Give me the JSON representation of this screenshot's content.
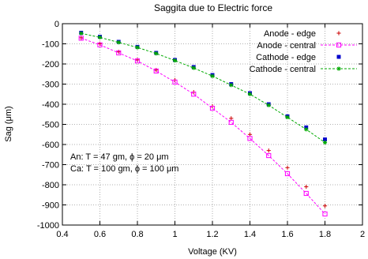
{
  "chart_data": {
    "type": "scatter",
    "title": "Saggita due to Electric force",
    "xlabel": "Voltage (KV)",
    "ylabel": "Sag (μm)",
    "xlim": [
      0.4,
      2.0
    ],
    "ylim": [
      -1000,
      0
    ],
    "x_ticks": [
      "0.4",
      "0.6",
      "0.8",
      "1",
      "1.2",
      "1.4",
      "1.6",
      "1.8",
      "2"
    ],
    "y_ticks": [
      "0",
      "-100",
      "-200",
      "-300",
      "-400",
      "-500",
      "-600",
      "-700",
      "-800",
      "-900",
      "-1000"
    ],
    "grid": true,
    "legend_position": "top-right",
    "x": [
      0.5,
      0.6,
      0.7,
      0.8,
      0.9,
      1.0,
      1.1,
      1.2,
      1.3,
      1.4,
      1.5,
      1.6,
      1.7,
      1.8
    ],
    "series": [
      {
        "name": "Anode - edge",
        "style": "points",
        "marker": "plus",
        "color": "#cc0000",
        "values": [
          -70,
          -100,
          -140,
          -180,
          -230,
          -280,
          -340,
          -410,
          -470,
          -550,
          -630,
          -715,
          -810,
          -905
        ]
      },
      {
        "name": "Anode - central",
        "style": "linespoints",
        "marker": "square",
        "color": "#ff00ff",
        "values": [
          -72,
          -105,
          -145,
          -185,
          -235,
          -290,
          -350,
          -420,
          -490,
          -570,
          -655,
          -745,
          -843,
          -945
        ]
      },
      {
        "name": "Cathode - edge",
        "style": "points",
        "marker": "filled-square",
        "color": "#0000cc",
        "values": [
          -45,
          -65,
          -90,
          -115,
          -145,
          -180,
          -215,
          -255,
          -300,
          -345,
          -400,
          -460,
          -515,
          -575
        ]
      },
      {
        "name": "Cathode - central",
        "style": "linespoints",
        "marker": "star",
        "color": "#00aa00",
        "values": [
          -48,
          -68,
          -93,
          -118,
          -148,
          -183,
          -220,
          -260,
          -305,
          -350,
          -405,
          -465,
          -525,
          -590
        ]
      }
    ],
    "annotations": [
      "An: T = 47 gm, ϕ = 20 μm",
      "Ca: T = 100 gm, ϕ = 100 μm"
    ]
  }
}
